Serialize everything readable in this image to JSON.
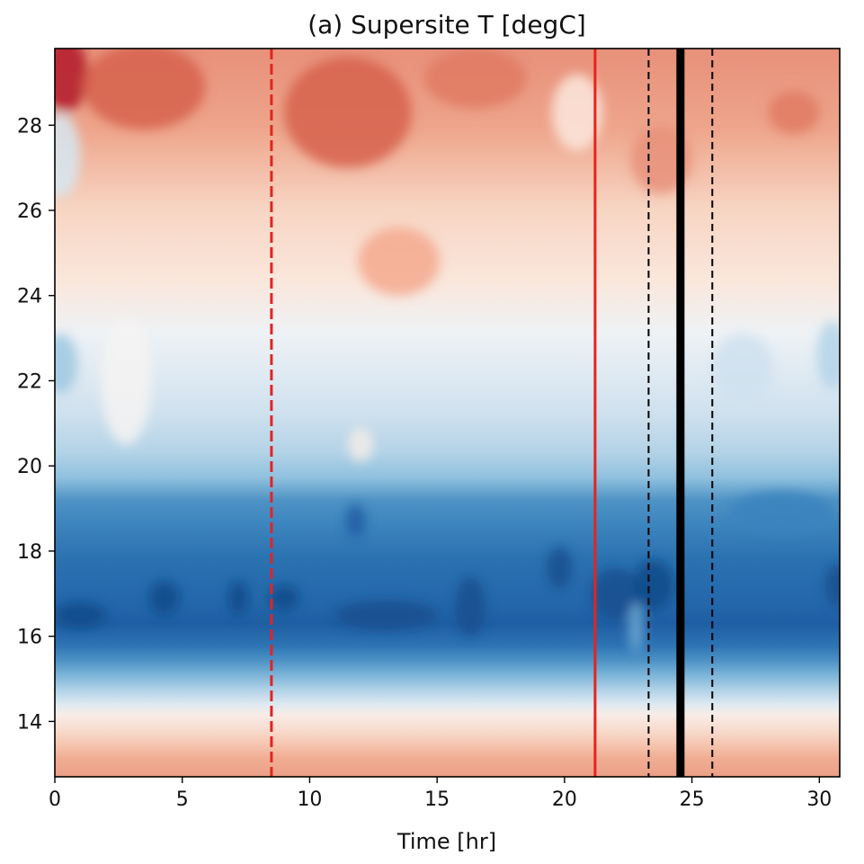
{
  "chart_data": {
    "type": "heatmap",
    "title": "(a) Supersite T [degC]",
    "xlabel": "Time [hr]",
    "ylabel": "",
    "xlim": [
      0,
      30.8
    ],
    "ylim": [
      12.7,
      29.8
    ],
    "xticks": [
      0,
      5,
      10,
      15,
      20,
      25,
      30
    ],
    "yticks": [
      14,
      16,
      18,
      20,
      22,
      24,
      26,
      28
    ],
    "colormap": "RdBu_r",
    "description_levels": "filled contours: warm (red) near the top and bottom, cold (blue) band around y=15.5-20.5",
    "vertical_lines": [
      {
        "x": 8.5,
        "color": "#e8221d",
        "style": "dashed",
        "width": 3
      },
      {
        "x": 21.2,
        "color": "#e8221d",
        "style": "solid",
        "width": 3
      },
      {
        "x": 23.3,
        "color": "#000000",
        "style": "dashed",
        "width": 2
      },
      {
        "x": 24.55,
        "color": "#000000",
        "style": "solid",
        "width": 9
      },
      {
        "x": 25.8,
        "color": "#000000",
        "style": "dashed",
        "width": 2
      }
    ]
  }
}
